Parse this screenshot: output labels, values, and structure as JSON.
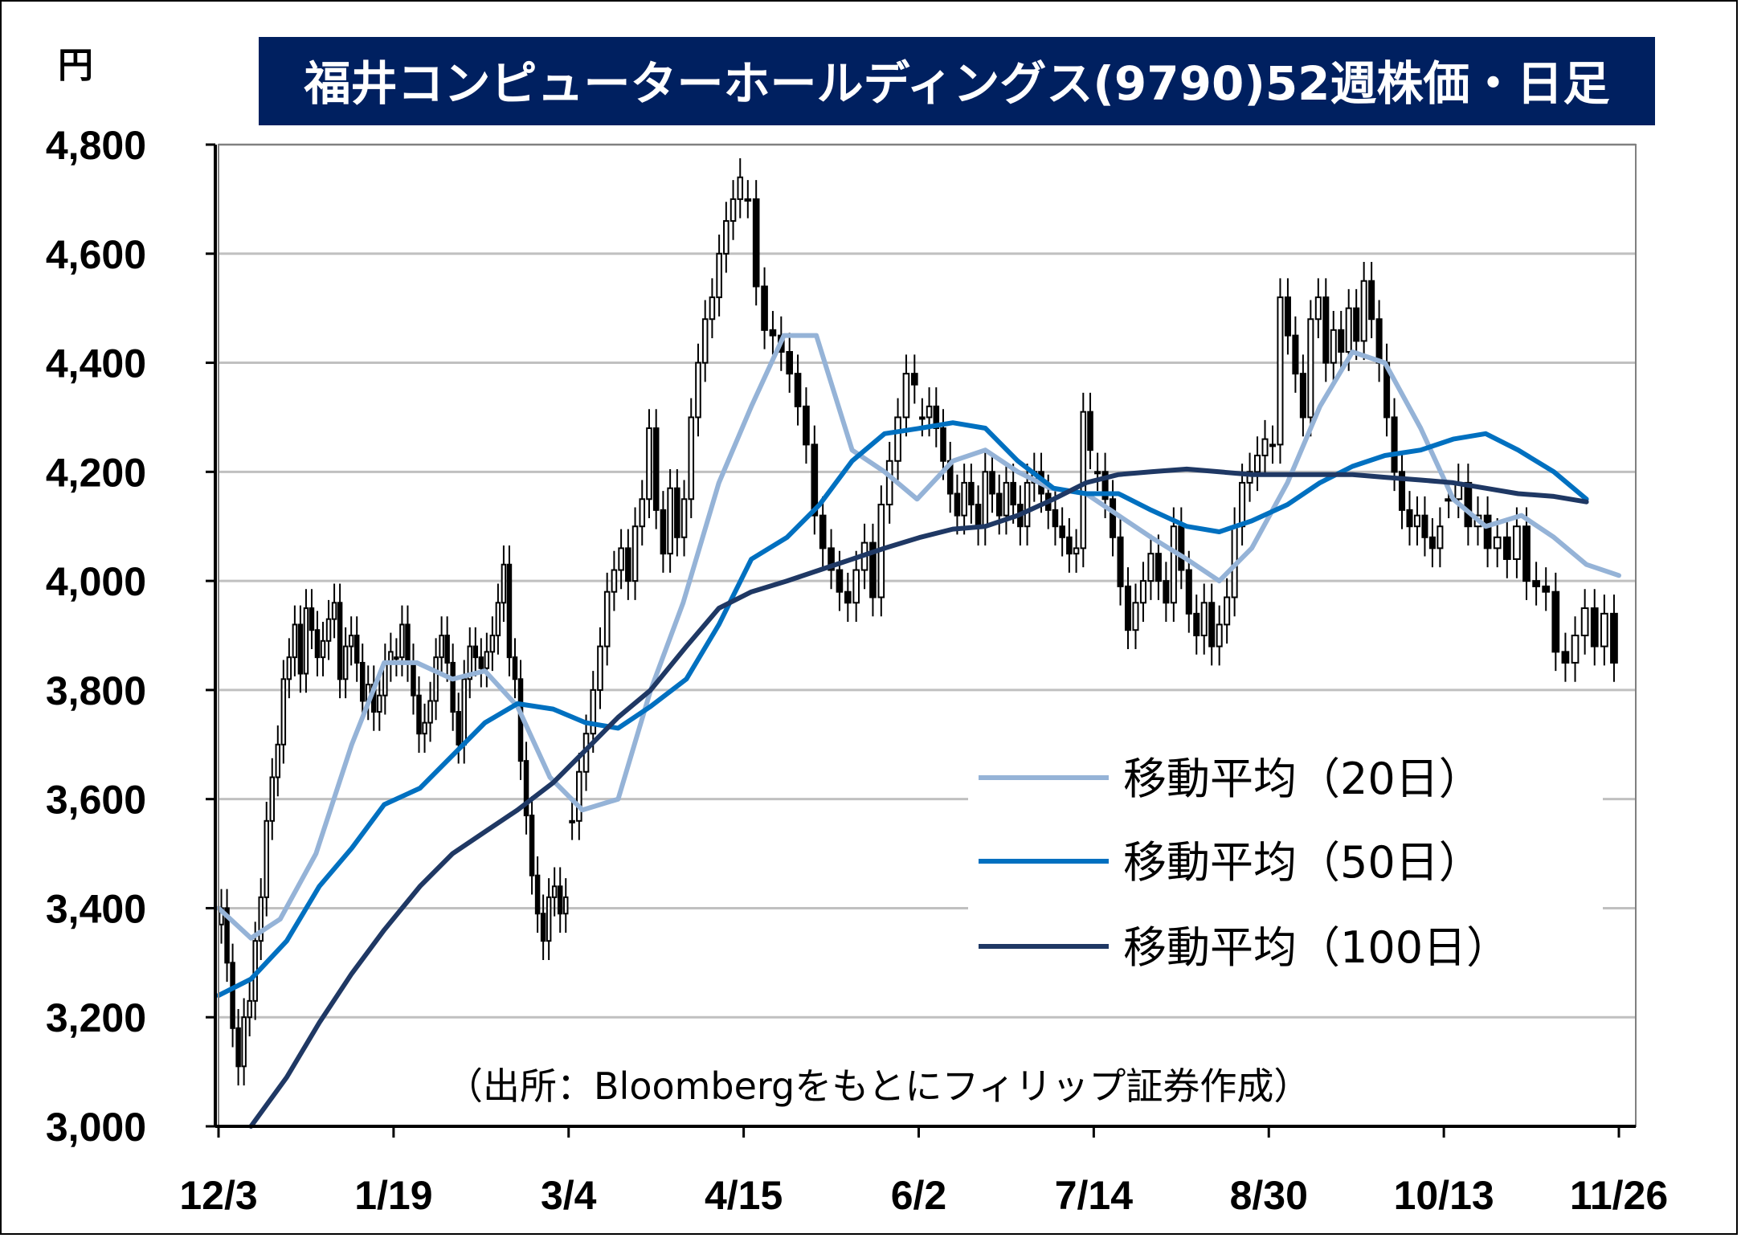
{
  "chart_data": {
    "type": "candlestick",
    "title": "福井コンピューターホールディングス(9790)52週株価・日足",
    "ylabel": "円",
    "ylim": [
      3000,
      4800
    ],
    "yticks": [
      "3,000",
      "3,200",
      "3,400",
      "3,600",
      "3,800",
      "4,000",
      "4,200",
      "4,400",
      "4,600",
      "4,800"
    ],
    "xticks": [
      "12/3",
      "1/19",
      "3/4",
      "4/15",
      "6/2",
      "7/14",
      "8/30",
      "10/13",
      "11/26"
    ],
    "source": "（出所：Bloombergをもとにフィリップ証券作成）",
    "grid": true,
    "legend_position": "bottom-right",
    "series": [
      {
        "name": "移動平均（20日）",
        "color": "#95B3D7",
        "points": [
          [
            0,
            3400
          ],
          [
            10,
            3345
          ],
          [
            19,
            3380
          ],
          [
            30,
            3500
          ],
          [
            41,
            3700
          ],
          [
            51,
            3850
          ],
          [
            61,
            3850
          ],
          [
            72,
            3820
          ],
          [
            82,
            3835
          ],
          [
            92,
            3770
          ],
          [
            102,
            3640
          ],
          [
            112,
            3580
          ],
          [
            123,
            3600
          ],
          [
            133,
            3800
          ],
          [
            143,
            3960
          ],
          [
            154,
            4180
          ],
          [
            164,
            4320
          ],
          [
            174,
            4450
          ],
          [
            184,
            4450
          ],
          [
            195,
            4240
          ],
          [
            205,
            4200
          ],
          [
            215,
            4150
          ],
          [
            226,
            4220
          ],
          [
            236,
            4240
          ],
          [
            246,
            4200
          ],
          [
            256,
            4170
          ],
          [
            267,
            4160
          ],
          [
            277,
            4120
          ],
          [
            287,
            4080
          ],
          [
            298,
            4040
          ],
          [
            308,
            4000
          ],
          [
            318,
            4060
          ],
          [
            329,
            4180
          ],
          [
            339,
            4320
          ],
          [
            349,
            4420
          ],
          [
            359,
            4400
          ],
          [
            370,
            4280
          ],
          [
            380,
            4150
          ],
          [
            390,
            4100
          ],
          [
            401,
            4120
          ],
          [
            411,
            4080
          ],
          [
            421,
            4030
          ],
          [
            431,
            4010
          ]
        ]
      },
      {
        "name": "移動平均（50日）",
        "color": "#0070C0",
        "points": [
          [
            0,
            3240
          ],
          [
            10,
            3270
          ],
          [
            21,
            3340
          ],
          [
            31,
            3440
          ],
          [
            41,
            3510
          ],
          [
            51,
            3590
          ],
          [
            62,
            3620
          ],
          [
            72,
            3680
          ],
          [
            82,
            3740
          ],
          [
            92,
            3775
          ],
          [
            103,
            3765
          ],
          [
            113,
            3740
          ],
          [
            123,
            3730
          ],
          [
            133,
            3770
          ],
          [
            144,
            3820
          ],
          [
            154,
            3920
          ],
          [
            164,
            4040
          ],
          [
            175,
            4080
          ],
          [
            185,
            4140
          ],
          [
            195,
            4220
          ],
          [
            205,
            4270
          ],
          [
            216,
            4280
          ],
          [
            226,
            4290
          ],
          [
            236,
            4280
          ],
          [
            246,
            4220
          ],
          [
            257,
            4170
          ],
          [
            267,
            4160
          ],
          [
            277,
            4160
          ],
          [
            287,
            4130
          ],
          [
            298,
            4100
          ],
          [
            308,
            4090
          ],
          [
            318,
            4110
          ],
          [
            329,
            4140
          ],
          [
            339,
            4180
          ],
          [
            349,
            4210
          ],
          [
            359,
            4230
          ],
          [
            370,
            4240
          ],
          [
            380,
            4260
          ],
          [
            390,
            4270
          ],
          [
            400,
            4240
          ],
          [
            411,
            4200
          ],
          [
            421,
            4150
          ]
        ]
      },
      {
        "name": "移動平均（100日）",
        "color": "#1F3864",
        "points": [
          [
            10,
            3000
          ],
          [
            21,
            3090
          ],
          [
            31,
            3190
          ],
          [
            41,
            3280
          ],
          [
            51,
            3360
          ],
          [
            62,
            3440
          ],
          [
            72,
            3500
          ],
          [
            82,
            3540
          ],
          [
            92,
            3580
          ],
          [
            103,
            3630
          ],
          [
            113,
            3690
          ],
          [
            123,
            3750
          ],
          [
            133,
            3800
          ],
          [
            144,
            3880
          ],
          [
            154,
            3950
          ],
          [
            164,
            3980
          ],
          [
            175,
            4000
          ],
          [
            185,
            4020
          ],
          [
            195,
            4040
          ],
          [
            205,
            4060
          ],
          [
            216,
            4080
          ],
          [
            226,
            4095
          ],
          [
            236,
            4100
          ],
          [
            246,
            4120
          ],
          [
            257,
            4150
          ],
          [
            267,
            4180
          ],
          [
            277,
            4195
          ],
          [
            287,
            4200
          ],
          [
            298,
            4205
          ],
          [
            308,
            4200
          ],
          [
            318,
            4195
          ],
          [
            329,
            4195
          ],
          [
            339,
            4195
          ],
          [
            349,
            4195
          ],
          [
            359,
            4190
          ],
          [
            370,
            4185
          ],
          [
            380,
            4180
          ],
          [
            390,
            4170
          ],
          [
            400,
            4160
          ],
          [
            411,
            4155
          ],
          [
            421,
            4145
          ]
        ]
      }
    ],
    "candles_by_segment": [
      {
        "from": "12/3",
        "to": "1/19",
        "closes": [
          3400,
          3300,
          3180,
          3110,
          3200,
          3230,
          3340,
          3420,
          3560,
          3640,
          3700,
          3820,
          3860,
          3920,
          3830,
          3950,
          3910,
          3860,
          3890,
          3930,
          3960,
          3820,
          3880,
          3900,
          3850,
          3780,
          3810,
          3760,
          3790,
          3850,
          3870
        ]
      },
      {
        "from": "1/19",
        "to": "3/4",
        "closes": [
          3860,
          3920,
          3850,
          3790,
          3720,
          3740,
          3780,
          3860,
          3900,
          3850,
          3760,
          3700,
          3820,
          3880,
          3860,
          3840,
          3870,
          3900,
          3960,
          4030,
          3860,
          3820,
          3670,
          3570,
          3460,
          3390,
          3340,
          3420,
          3440,
          3390,
          3420
        ]
      },
      {
        "from": "3/4",
        "to": "4/15",
        "closes": [
          3560,
          3650,
          3720,
          3800,
          3880,
          3980,
          4020,
          4060,
          4000,
          4100,
          4150,
          4280,
          4130,
          4050,
          4170,
          4080,
          4150,
          4300,
          4400,
          4480,
          4520,
          4600,
          4660,
          4700,
          4740
        ]
      },
      {
        "from": "4/15",
        "to": "6/2",
        "closes": [
          4700,
          4540,
          4460,
          4450,
          4420,
          4380,
          4320,
          4250,
          4120,
          4060,
          4020,
          3980,
          3960,
          4020,
          4070,
          3970,
          4140,
          4220,
          4300,
          4380,
          4360
        ]
      },
      {
        "from": "6/2",
        "to": "7/14",
        "closes": [
          4300,
          4320,
          4280,
          4220,
          4160,
          4120,
          4180,
          4140,
          4100,
          4200,
          4160,
          4120,
          4180,
          4140,
          4100,
          4180,
          4200,
          4160,
          4130,
          4100,
          4080,
          4050,
          4060,
          4310,
          4240
        ]
      },
      {
        "from": "7/14",
        "to": "8/30",
        "closes": [
          4200,
          4150,
          4080,
          3990,
          3910,
          3960,
          4000,
          4050,
          4000,
          3960,
          4100,
          4020,
          3940,
          3900,
          3960,
          3880,
          3920,
          3970,
          4100,
          4180,
          4200,
          4230,
          4260
        ]
      },
      {
        "from": "8/30",
        "to": "10/13",
        "closes": [
          4250,
          4520,
          4450,
          4380,
          4300,
          4480,
          4520,
          4400,
          4460,
          4420,
          4500,
          4440,
          4550,
          4480,
          4400,
          4300,
          4200,
          4130,
          4100,
          4120,
          4080,
          4060,
          4100
        ]
      },
      {
        "from": "10/13",
        "to": "11/26",
        "closes": [
          4150,
          4180,
          4100,
          4120,
          4060,
          4080,
          4040,
          4100,
          4000,
          3990,
          3980,
          3870,
          3850,
          3900,
          3950,
          3880,
          3940,
          3850
        ]
      }
    ]
  }
}
